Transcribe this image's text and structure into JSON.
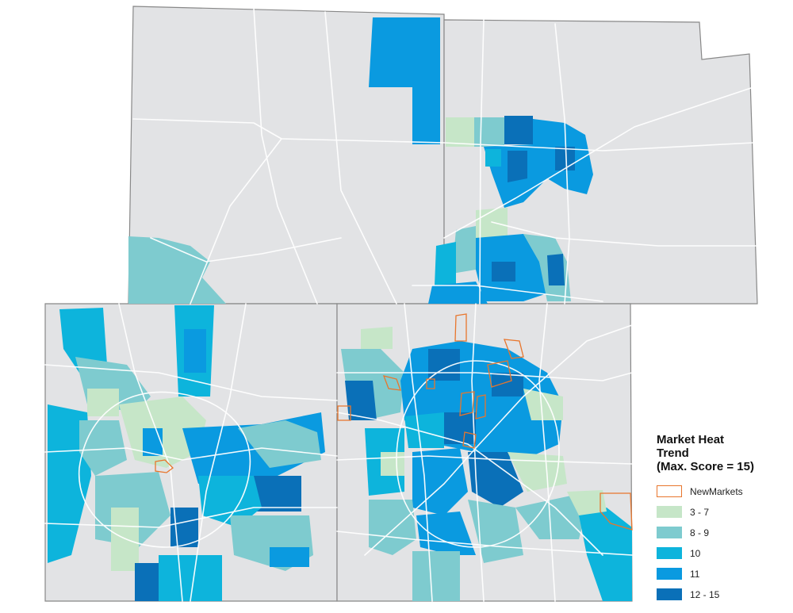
{
  "legend": {
    "title_lines": [
      "Market Heat",
      "Trend",
      "(Max. Score = 15)"
    ],
    "items": [
      {
        "label": "NewMarkets",
        "fill": "#ffffff",
        "stroke": "#e8762d",
        "kind": "outline"
      },
      {
        "label": "3 - 7",
        "fill": "#c6e6c8",
        "stroke": "none",
        "kind": "fill"
      },
      {
        "label": "8 - 9",
        "fill": "#7ecbcf",
        "stroke": "none",
        "kind": "fill"
      },
      {
        "label": "10",
        "fill": "#0db4dc",
        "stroke": "none",
        "kind": "fill"
      },
      {
        "label": "11",
        "fill": "#0a9ae0",
        "stroke": "none",
        "kind": "fill"
      },
      {
        "label": "12 - 15",
        "fill": "#0a70b8",
        "stroke": "none",
        "kind": "fill"
      }
    ]
  },
  "colors": {
    "land": "#e2e3e5",
    "county_border": "#888888",
    "road": "#ffffff",
    "new_market_outline": "#e8762d"
  }
}
